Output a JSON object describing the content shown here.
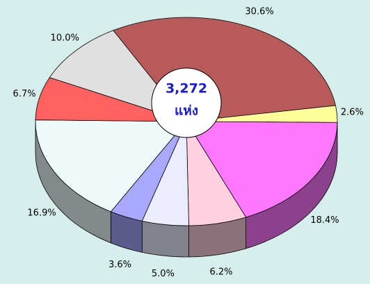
{
  "chart_data": {
    "type": "pie",
    "values": [
      30.6,
      2.6,
      18.4,
      6.2,
      5.0,
      3.6,
      16.9,
      6.7,
      10.0
    ],
    "value_labels": [
      "30.6%",
      "2.6%",
      "18.4%",
      "6.2%",
      "5.0%",
      "3.6%",
      "16.9%",
      "6.7%",
      "10.0%"
    ],
    "colors": [
      "#b85a5a",
      "#ffff99",
      "#ff77ff",
      "#ffd0e0",
      "#ececff",
      "#a8a8ff",
      "#eefafa",
      "#ff6060",
      "#e0e0e0"
    ],
    "center_label": [
      "3,272",
      "แห่ง"
    ]
  }
}
